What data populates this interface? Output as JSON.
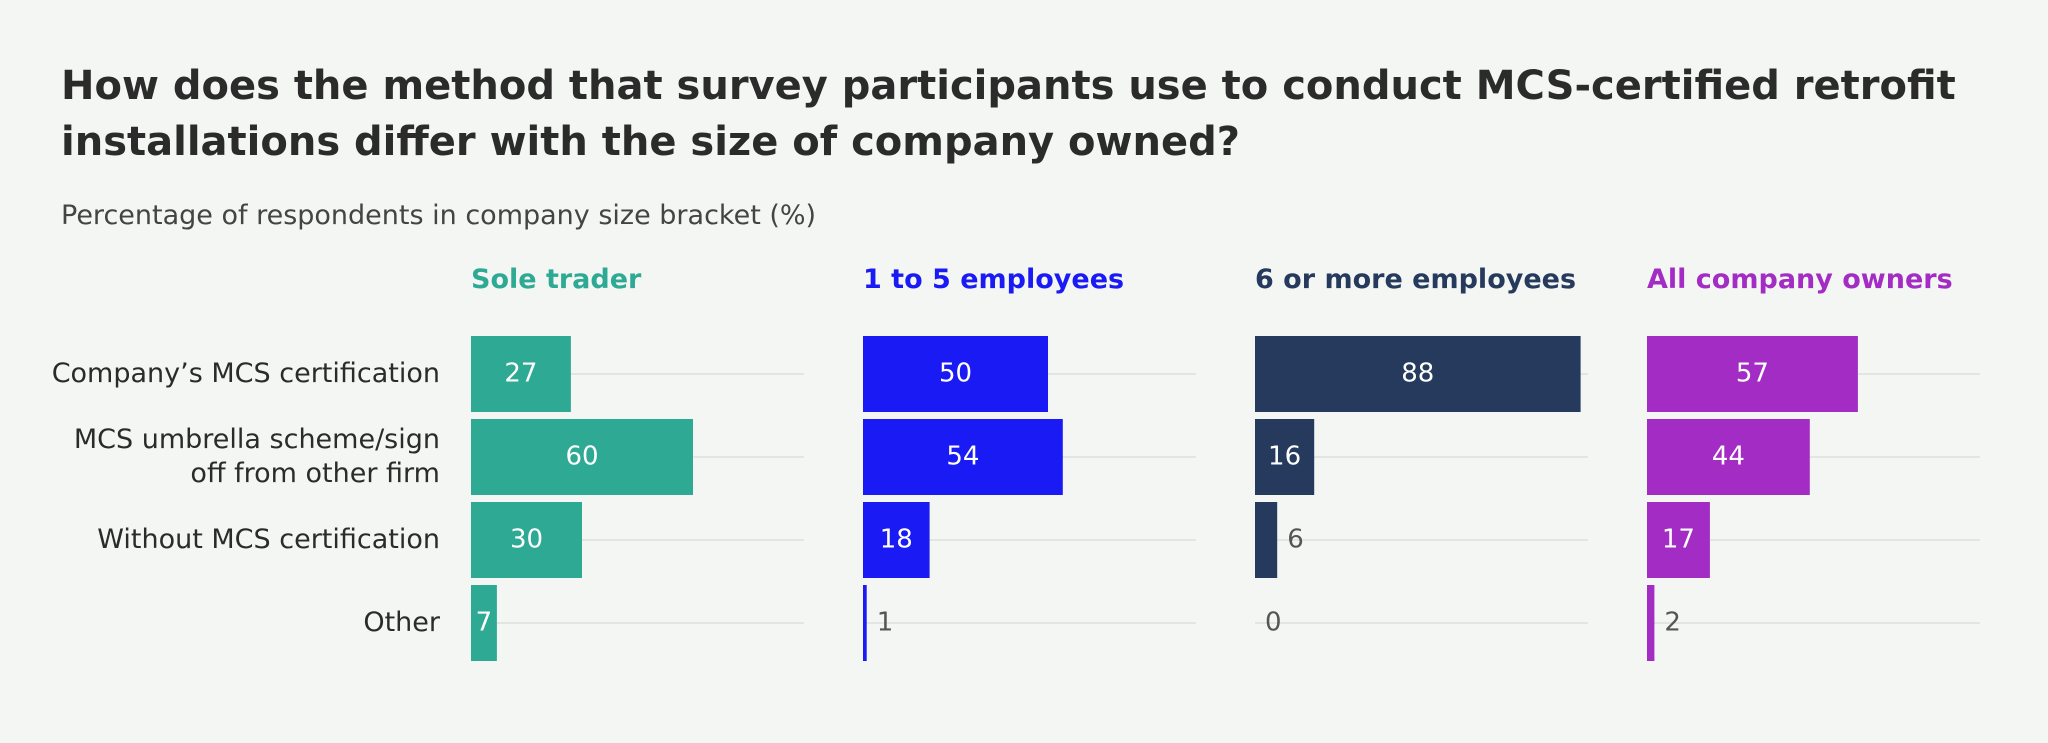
{
  "chart_data": {
    "type": "bar",
    "orientation": "horizontal",
    "title": "How does the method that survey participants use to conduct MCS-certified retrofit installations differ with the size of company owned?",
    "subtitle": "Percentage of respondents in company size bracket (%)",
    "categories": [
      "Company’s MCS certification",
      "MCS umbrella scheme/sign off from other firm",
      "Without MCS certification",
      "Other"
    ],
    "xlim": [
      0,
      90
    ],
    "grid": true,
    "series": [
      {
        "name": "Sole trader",
        "color": "#2eaa94",
        "values": [
          27,
          60,
          30,
          7
        ]
      },
      {
        "name": "1 to 5 employees",
        "color": "#1a1af5",
        "values": [
          50,
          54,
          18,
          1
        ]
      },
      {
        "name": "6 or more employees",
        "color": "#253a5c",
        "values": [
          88,
          16,
          6,
          0
        ]
      },
      {
        "name": "All company owners",
        "color": "#a32cc4",
        "values": [
          57,
          44,
          17,
          2
        ]
      }
    ]
  }
}
